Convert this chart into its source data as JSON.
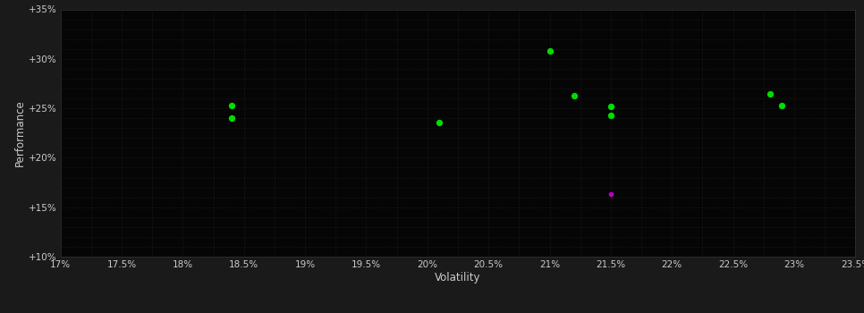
{
  "background_color": "#1a1a1a",
  "plot_bg_color": "#050505",
  "grid_color": "#2a2a2a",
  "text_color": "#cccccc",
  "xlabel": "Volatility",
  "ylabel": "Performance",
  "xlim": [
    0.17,
    0.235
  ],
  "ylim": [
    0.1,
    0.35
  ],
  "xticks": [
    0.17,
    0.175,
    0.18,
    0.185,
    0.19,
    0.195,
    0.2,
    0.205,
    0.21,
    0.215,
    0.22,
    0.225,
    0.23,
    0.235
  ],
  "yticks": [
    0.1,
    0.15,
    0.2,
    0.25,
    0.3,
    0.35
  ],
  "ytick_labels": [
    "+10%",
    "+15%",
    "+20%",
    "+25%",
    "+30%",
    "+35%"
  ],
  "xtick_labels": [
    "17%",
    "17.5%",
    "18%",
    "18.5%",
    "19%",
    "19.5%",
    "20%",
    "20.5%",
    "21%",
    "21.5%",
    "22%",
    "22.5%",
    "23%",
    "23.5%"
  ],
  "minor_ytick_step": 0.01,
  "green_points": [
    [
      0.184,
      0.253
    ],
    [
      0.184,
      0.24
    ],
    [
      0.201,
      0.236
    ],
    [
      0.21,
      0.308
    ],
    [
      0.212,
      0.263
    ],
    [
      0.215,
      0.252
    ],
    [
      0.215,
      0.243
    ],
    [
      0.228,
      0.265
    ],
    [
      0.229,
      0.253
    ]
  ],
  "magenta_points": [
    [
      0.215,
      0.163
    ]
  ],
  "green_color": "#00dd00",
  "magenta_color": "#bb00bb",
  "marker_size": 28
}
